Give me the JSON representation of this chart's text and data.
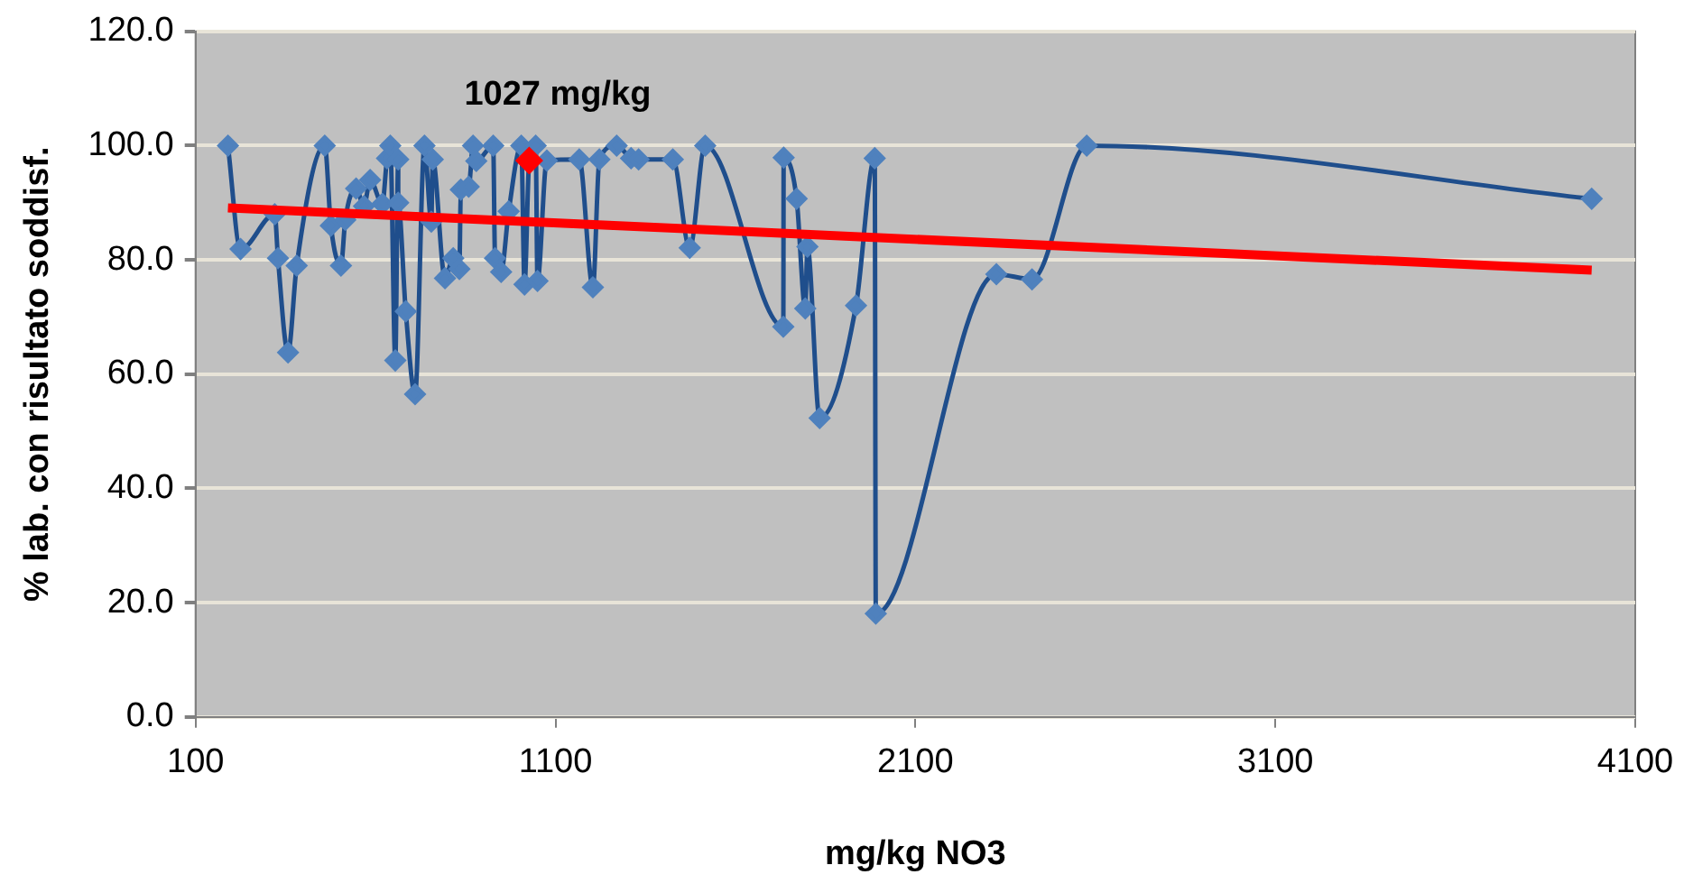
{
  "chart_data": {
    "type": "scatter",
    "xlabel": "mg/kg NO3",
    "ylabel": "% lab. con risultato soddisf.",
    "xlim": [
      100,
      4100
    ],
    "xticks": [
      100,
      1100,
      2100,
      3100,
      4100
    ],
    "ylim": [
      0,
      120
    ],
    "yticks": [
      {
        "value": 0,
        "label": "0.0"
      },
      {
        "value": 20,
        "label": "20.0"
      },
      {
        "value": 40,
        "label": "40.0"
      },
      {
        "value": 60,
        "label": "60.0"
      },
      {
        "value": 80,
        "label": "80.0"
      },
      {
        "value": 100,
        "label": "100.0"
      },
      {
        "value": 120,
        "label": "120.0"
      }
    ],
    "grid": "y",
    "legend": false,
    "annotations": [
      {
        "text": "1027 mg/kg",
        "x": 1027,
        "y": 97.4
      }
    ],
    "series": [
      {
        "type": "line",
        "color": "#1f4e8c",
        "marker": "diamond",
        "x": [
          190,
          225,
          320,
          329,
          357,
          381,
          459,
          476,
          504,
          516,
          546,
          568,
          585,
          619,
          632,
          641,
          655,
          663,
          663,
          684,
          710,
          736,
          755,
          759,
          793,
          816,
          833,
          837,
          859,
          871,
          880,
          927,
          932,
          949,
          970,
          1005,
          1014,
          1027,
          1045,
          1050,
          1076,
          1166,
          1204,
          1222,
          1270,
          1310,
          1331,
          1426,
          1473,
          1516,
          1733,
          1734,
          1770,
          1794,
          1800,
          1834,
          1935,
          1987,
          1990,
          2325,
          2424,
          2576,
          3979
        ],
        "values": [
          100,
          81.9,
          88,
          80.3,
          63.8,
          79,
          100,
          86,
          79,
          87,
          92.5,
          89.4,
          94,
          89.8,
          97.8,
          100,
          62.4,
          97.6,
          90,
          71,
          56.5,
          100,
          86.7,
          97.6,
          76.8,
          80.3,
          78.4,
          92.3,
          92.8,
          100,
          97.3,
          100,
          80.3,
          77.9,
          88.5,
          100,
          75.7,
          97.4,
          100,
          76.3,
          97.4,
          97.6,
          75.2,
          97.6,
          100,
          97.8,
          97.6,
          97.6,
          82.1,
          100,
          68.3,
          97.9,
          90.7,
          71.5,
          82.3,
          52.3,
          72,
          97.8,
          18.1,
          77.5,
          76.6,
          100,
          90.7
        ]
      },
      {
        "type": "line",
        "color": "#ff0000",
        "marker": "none",
        "x": [
          190,
          3979
        ],
        "values": [
          89.1,
          78.2
        ]
      },
      {
        "type": "scatter",
        "color": "#ff0000",
        "marker": "diamond",
        "x": [
          1027
        ],
        "values": [
          97.4
        ]
      }
    ]
  }
}
